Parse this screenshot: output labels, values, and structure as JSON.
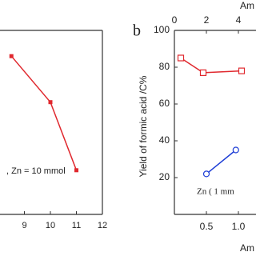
{
  "chart_data": [
    {
      "type": "line",
      "annotation": ", Zn = 10 mmol",
      "x": [
        8.5,
        10,
        11
      ],
      "series": [
        {
          "name": null,
          "color": "#e0282e",
          "values": [
            86,
            61,
            24
          ]
        }
      ],
      "xlim": [
        8,
        12
      ],
      "xticks": [
        9,
        10,
        11,
        12
      ],
      "ylim": [
        0,
        100
      ]
    },
    {
      "type": "line",
      "panel_label": "b",
      "ylabel": "Yield of formic acid /C%",
      "xlabel": "Am",
      "x2label": "Am",
      "xlim": [
        0,
        1.275
      ],
      "xticks": [
        0.5,
        {
          "value": 1,
          "label": "1.0"
        }
      ],
      "x2lim": [
        0,
        5.1
      ],
      "x2ticks": [
        0,
        2,
        4
      ],
      "ylim": [
        0,
        100
      ],
      "yticks": [
        20,
        40,
        60,
        80,
        100
      ],
      "series": [
        {
          "name": null,
          "axis": "x2",
          "color": "#e0282e",
          "marker": "square",
          "x": [
            0.4,
            1.8,
            4.2
          ],
          "values": [
            85,
            77,
            78
          ]
        },
        {
          "name": "Zn ( 1 mm",
          "axis": "x",
          "color": "#1f3fd6",
          "marker": "circle",
          "x": [
            0.5,
            0.96
          ],
          "values": [
            22,
            35
          ]
        }
      ]
    }
  ]
}
